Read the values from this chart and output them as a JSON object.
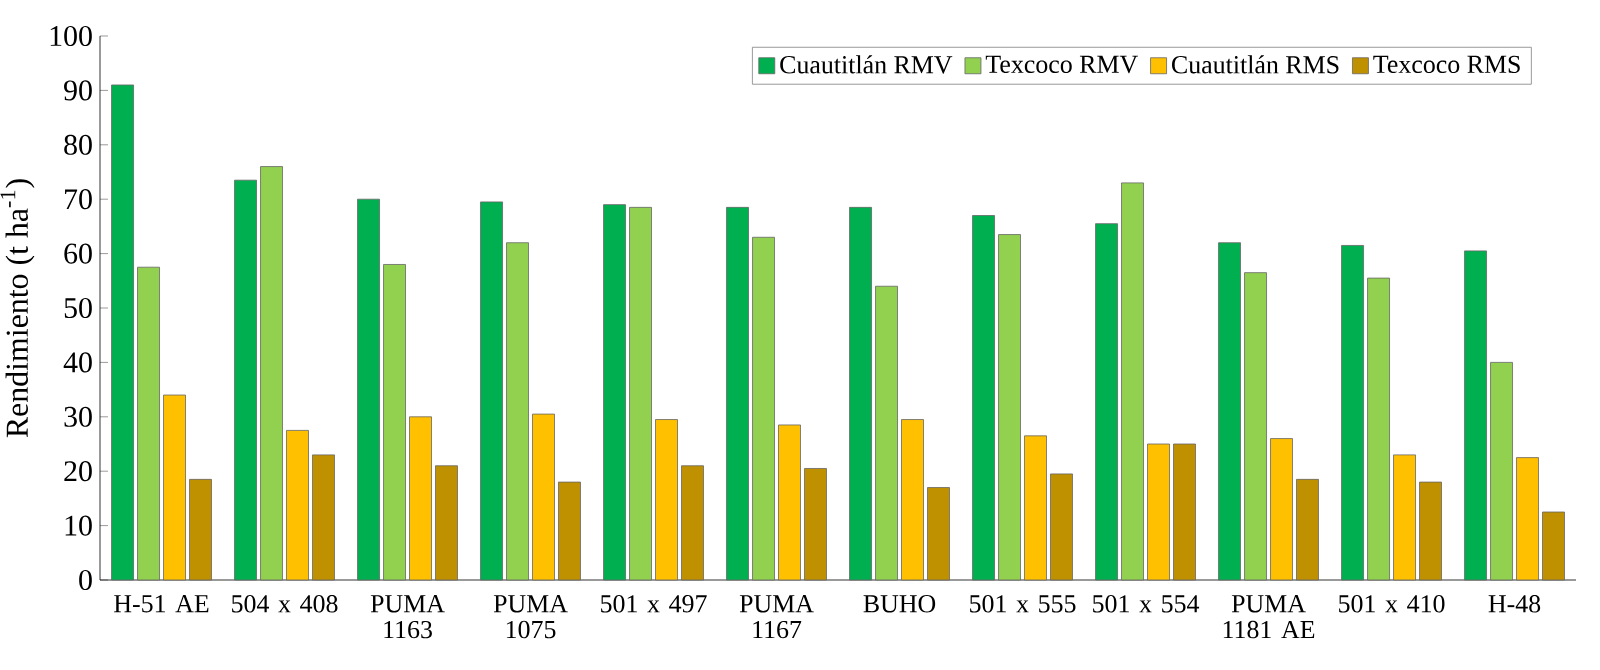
{
  "chart_data": {
    "type": "bar",
    "ylabel": "Rendimiento (t ha$^{-1}$)",
    "categories": [
      "H-51 AE",
      "504 x 408",
      "PUMA 1163",
      "PUMA 1075",
      "501 x 497",
      "PUMA 1167",
      "BUHO",
      "501 x 555",
      "501 x 554",
      "PUMA 1181 AE",
      "501 x 410",
      "H-48"
    ],
    "series": [
      {
        "name": "Cuautitlán RMV",
        "color": "#00b050",
        "values": [
          91,
          73.5,
          70,
          69.5,
          69,
          68.5,
          68.5,
          67,
          65.5,
          62,
          61.5,
          60.5
        ]
      },
      {
        "name": "Texcoco RMV",
        "color": "#92d050",
        "values": [
          57.5,
          76,
          58,
          62,
          68.5,
          63,
          54,
          63.5,
          73,
          56.5,
          55.5,
          40
        ]
      },
      {
        "name": "Cuautitlán RMS",
        "color": "#ffc000",
        "values": [
          34,
          27.5,
          30,
          30.5,
          29.5,
          28.5,
          29.5,
          26.5,
          25,
          26,
          23,
          22.5
        ]
      },
      {
        "name": "Texcoco RMS",
        "color": "#bf9000",
        "values": [
          18.5,
          23,
          21,
          18,
          21,
          20.5,
          17,
          19.5,
          25,
          18.5,
          18,
          12.5
        ]
      }
    ],
    "ylim": [
      0,
      100
    ],
    "yticks": [
      0,
      10,
      20,
      30,
      40,
      50,
      60,
      70,
      80,
      90,
      100
    ],
    "grid": false,
    "legend": "top right"
  }
}
